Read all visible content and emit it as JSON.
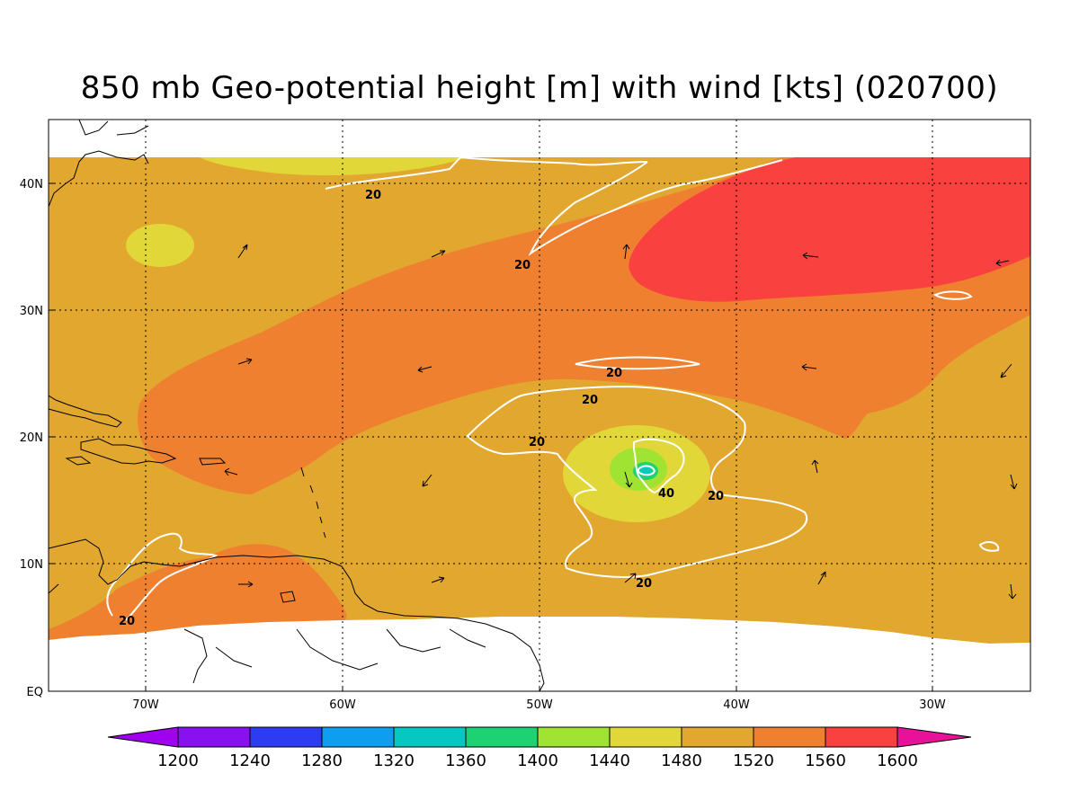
{
  "title": "850 mb Geo-potential height [m] with wind [kts] (020700)",
  "colors": {
    "c1480": "#e1d738",
    "c1520": "#e2a72f",
    "c1560": "#ee8030",
    "c1600": "#f9423f",
    "c1440": "#a0e332",
    "c1400": "#1dd273",
    "c1360": "#06c8c2",
    "contour": "#ffffff",
    "coast": "#000000"
  },
  "axes": {
    "lat_labels": [
      "EQ",
      "10N",
      "20N",
      "30N",
      "40N"
    ],
    "lon_labels": [
      "70W",
      "60W",
      "50W",
      "40W",
      "30W"
    ]
  },
  "contour_labels": [
    "20",
    "20",
    "20",
    "20",
    "20",
    "20",
    "40",
    "20",
    "20"
  ],
  "colorbar": {
    "colors": [
      "#a001ee",
      "#8a11ef",
      "#2d3cf2",
      "#0e9ef0",
      "#06c8c2",
      "#1dd273",
      "#a0e332",
      "#e1d738",
      "#e2a72f",
      "#ee8030",
      "#f9423f",
      "#e8119a"
    ],
    "labels": [
      "1200",
      "1240",
      "1280",
      "1320",
      "1360",
      "1400",
      "1440",
      "1480",
      "1520",
      "1560",
      "1600"
    ]
  }
}
